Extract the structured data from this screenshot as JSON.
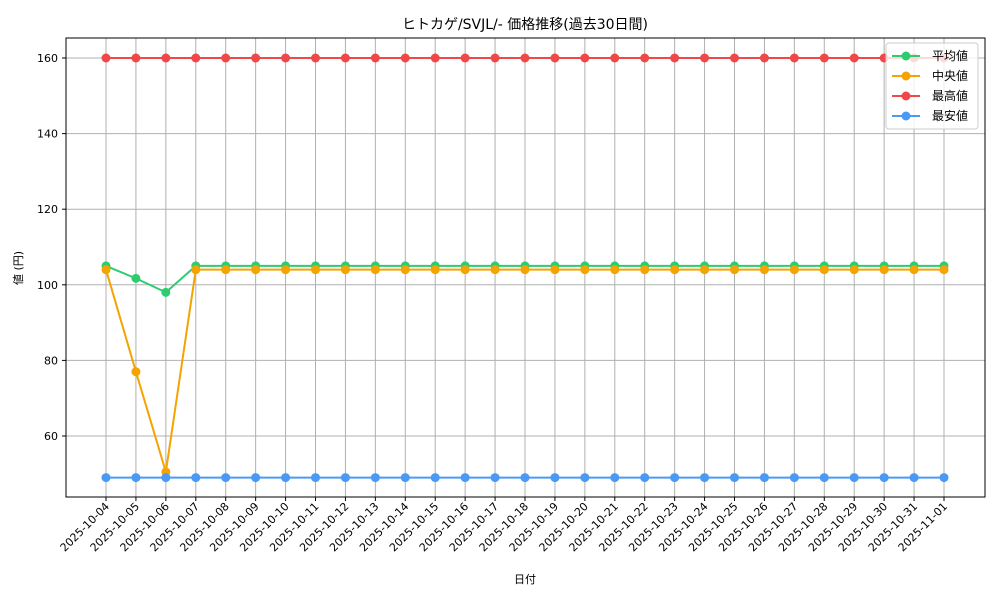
{
  "chart_data": {
    "type": "line",
    "title": "ヒトカゲ/SVJL/- 価格推移(過去30日間)",
    "xlabel": "日付",
    "ylabel": "値 (円)",
    "ylim": [
      44,
      166
    ],
    "yticks": [
      60,
      80,
      100,
      120,
      140,
      160
    ],
    "grid": true,
    "legend_position": "upper right",
    "x": [
      "2025-10-04",
      "2025-10-05",
      "2025-10-06",
      "2025-10-07",
      "2025-10-08",
      "2025-10-09",
      "2025-10-10",
      "2025-10-11",
      "2025-10-12",
      "2025-10-13",
      "2025-10-14",
      "2025-10-15",
      "2025-10-16",
      "2025-10-17",
      "2025-10-18",
      "2025-10-19",
      "2025-10-20",
      "2025-10-21",
      "2025-10-22",
      "2025-10-23",
      "2025-10-24",
      "2025-10-25",
      "2025-10-26",
      "2025-10-27",
      "2025-10-28",
      "2025-10-29",
      "2025-10-30",
      "2025-10-31",
      "2025-11-01"
    ],
    "series": [
      {
        "name": "平均値",
        "color": "#2ecc71",
        "values": [
          105,
          101.7,
          98,
          105,
          105,
          105,
          105,
          105,
          105,
          105,
          105,
          105,
          105,
          105,
          105,
          105,
          105,
          105,
          105,
          105,
          105,
          105,
          105,
          105,
          105,
          105,
          105,
          105,
          105
        ]
      },
      {
        "name": "中央値",
        "color": "#f5a300",
        "values": [
          104,
          77,
          50.5,
          104,
          104,
          104,
          104,
          104,
          104,
          104,
          104,
          104,
          104,
          104,
          104,
          104,
          104,
          104,
          104,
          104,
          104,
          104,
          104,
          104,
          104,
          104,
          104,
          104,
          104
        ]
      },
      {
        "name": "最高値",
        "color": "#f04848",
        "values": [
          160,
          160,
          160,
          160,
          160,
          160,
          160,
          160,
          160,
          160,
          160,
          160,
          160,
          160,
          160,
          160,
          160,
          160,
          160,
          160,
          160,
          160,
          160,
          160,
          160,
          160,
          160,
          160,
          160
        ]
      },
      {
        "name": "最安値",
        "color": "#4a9af5",
        "values": [
          49,
          49,
          49,
          49,
          49,
          49,
          49,
          49,
          49,
          49,
          49,
          49,
          49,
          49,
          49,
          49,
          49,
          49,
          49,
          49,
          49,
          49,
          49,
          49,
          49,
          49,
          49,
          49,
          49
        ]
      }
    ]
  }
}
